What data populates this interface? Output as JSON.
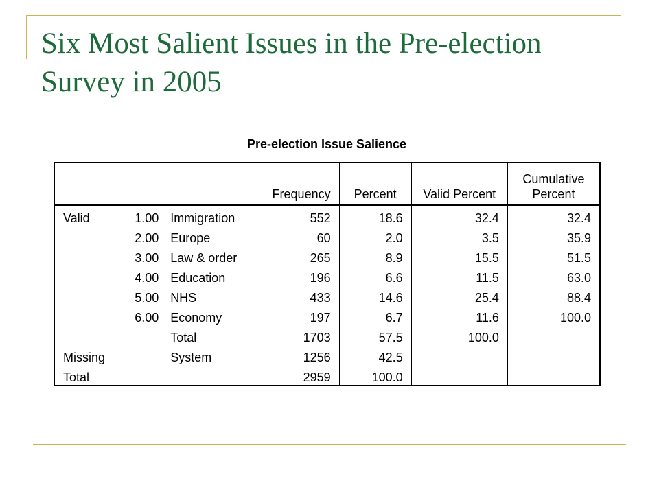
{
  "slide": {
    "title": "Six Most Salient Issues in the Pre-election Survey in 2005",
    "accent_color": "#c9b458",
    "title_color": "#1d6b3a"
  },
  "table": {
    "caption": "Pre-election Issue Salience",
    "headers": {
      "frequency": "Frequency",
      "percent": "Percent",
      "valid_percent": "Valid Percent",
      "cumulative_percent_line1": "Cumulative",
      "cumulative_percent_line2": "Percent"
    },
    "rows": [
      {
        "group": "Valid",
        "code": "1.00",
        "label": "Immigration",
        "frequency": "552",
        "percent": "18.6",
        "valid_percent": "32.4",
        "cumulative_percent": "32.4"
      },
      {
        "group": "",
        "code": "2.00",
        "label": "Europe",
        "frequency": "60",
        "percent": "2.0",
        "valid_percent": "3.5",
        "cumulative_percent": "35.9"
      },
      {
        "group": "",
        "code": "3.00",
        "label": "Law & order",
        "frequency": "265",
        "percent": "8.9",
        "valid_percent": "15.5",
        "cumulative_percent": "51.5"
      },
      {
        "group": "",
        "code": "4.00",
        "label": "Education",
        "frequency": "196",
        "percent": "6.6",
        "valid_percent": "11.5",
        "cumulative_percent": "63.0"
      },
      {
        "group": "",
        "code": "5.00",
        "label": "NHS",
        "frequency": "433",
        "percent": "14.6",
        "valid_percent": "25.4",
        "cumulative_percent": "88.4"
      },
      {
        "group": "",
        "code": "6.00",
        "label": "Economy",
        "frequency": "197",
        "percent": "6.7",
        "valid_percent": "11.6",
        "cumulative_percent": "100.0"
      },
      {
        "group": "",
        "code": "",
        "label": "Total",
        "frequency": "1703",
        "percent": "57.5",
        "valid_percent": "100.0",
        "cumulative_percent": ""
      },
      {
        "group": "Missing",
        "code": "",
        "label": "System",
        "frequency": "1256",
        "percent": "42.5",
        "valid_percent": "",
        "cumulative_percent": ""
      },
      {
        "group": "Total",
        "code": "",
        "label": "",
        "frequency": "2959",
        "percent": "100.0",
        "valid_percent": "",
        "cumulative_percent": ""
      }
    ]
  }
}
